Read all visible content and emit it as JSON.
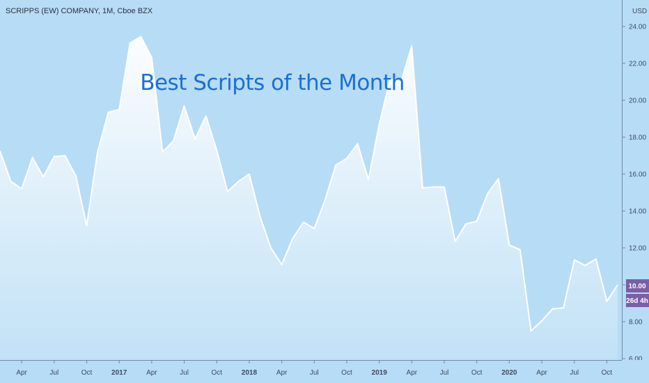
{
  "header": {
    "symbol_label": "SCRIPPS (EW) COMPANY, 1M, Cboe BZX",
    "currency": "USD"
  },
  "overlay": {
    "promo_text": "Best Scripts of the Month"
  },
  "price_badges": {
    "last_price": "10.00",
    "countdown": "26d 4h",
    "badge_color": "#7b5ea7"
  },
  "colors": {
    "background": "#b7dcf5",
    "line": "#ffffff",
    "area_top": "#ffffff",
    "axis_text": "#3d4a5c",
    "promo": "#1a6fd4"
  },
  "chart_data": {
    "type": "area",
    "title": "",
    "xlabel": "",
    "ylabel": "",
    "ylim": [
      6.0,
      25.0
    ],
    "y_ticks": [
      "24.00",
      "22.00",
      "20.00",
      "18.00",
      "16.00",
      "14.00",
      "12.00",
      "10.00",
      "8.00",
      "6.00"
    ],
    "x_tick_labels": [
      {
        "label": "Apr",
        "month": "2016-04",
        "bold": false
      },
      {
        "label": "Jul",
        "month": "2016-07",
        "bold": false
      },
      {
        "label": "Oct",
        "month": "2016-10",
        "bold": false
      },
      {
        "label": "2017",
        "month": "2017-01",
        "bold": true
      },
      {
        "label": "Apr",
        "month": "2017-04",
        "bold": false
      },
      {
        "label": "Jul",
        "month": "2017-07",
        "bold": false
      },
      {
        "label": "Oct",
        "month": "2017-10",
        "bold": false
      },
      {
        "label": "2018",
        "month": "2018-01",
        "bold": true
      },
      {
        "label": "Apr",
        "month": "2018-04",
        "bold": false
      },
      {
        "label": "Jul",
        "month": "2018-07",
        "bold": false
      },
      {
        "label": "Oct",
        "month": "2018-10",
        "bold": false
      },
      {
        "label": "2019",
        "month": "2019-01",
        "bold": true
      },
      {
        "label": "Apr",
        "month": "2019-04",
        "bold": false
      },
      {
        "label": "Jul",
        "month": "2019-07",
        "bold": false
      },
      {
        "label": "Oct",
        "month": "2019-10",
        "bold": false
      },
      {
        "label": "2020",
        "month": "2020-01",
        "bold": true
      },
      {
        "label": "Apr",
        "month": "2020-04",
        "bold": false
      },
      {
        "label": "Jul",
        "month": "2020-07",
        "bold": false
      },
      {
        "label": "Oct",
        "month": "2020-10",
        "bold": false
      }
    ],
    "series": [
      {
        "x": [
          "2016-02",
          "2016-03",
          "2016-04",
          "2016-05",
          "2016-06",
          "2016-07",
          "2016-08",
          "2016-09",
          "2016-10",
          "2016-11",
          "2016-12",
          "2017-01",
          "2017-02",
          "2017-03",
          "2017-04",
          "2017-05",
          "2017-06",
          "2017-07",
          "2017-08",
          "2017-09",
          "2017-10",
          "2017-11",
          "2017-12",
          "2018-01",
          "2018-02",
          "2018-03",
          "2018-04",
          "2018-05",
          "2018-06",
          "2018-07",
          "2018-08",
          "2018-09",
          "2018-10",
          "2018-11",
          "2018-12",
          "2019-01",
          "2019-02",
          "2019-03",
          "2019-04",
          "2019-05",
          "2019-06",
          "2019-07",
          "2019-08",
          "2019-09",
          "2019-10",
          "2019-11",
          "2019-12",
          "2020-01",
          "2020-02",
          "2020-03",
          "2020-04",
          "2020-05",
          "2020-06",
          "2020-07",
          "2020-08",
          "2020-09",
          "2020-10",
          "2020-11"
        ],
        "values": [
          17.25,
          15.6,
          15.2,
          16.9,
          15.85,
          16.95,
          17.0,
          15.9,
          13.2,
          17.2,
          19.35,
          19.5,
          23.1,
          23.45,
          22.3,
          17.2,
          17.8,
          19.7,
          17.9,
          19.15,
          17.3,
          15.05,
          15.6,
          16.0,
          13.7,
          12.0,
          11.1,
          12.5,
          13.4,
          13.05,
          14.6,
          16.5,
          16.85,
          17.65,
          15.7,
          18.7,
          21.15,
          21.0,
          22.95,
          15.25,
          15.3,
          15.3,
          12.35,
          13.3,
          13.45,
          14.95,
          15.75,
          12.15,
          11.9,
          7.5,
          8.05,
          8.7,
          8.75,
          11.35,
          11.05,
          11.4,
          9.1,
          10.0
        ]
      }
    ]
  }
}
